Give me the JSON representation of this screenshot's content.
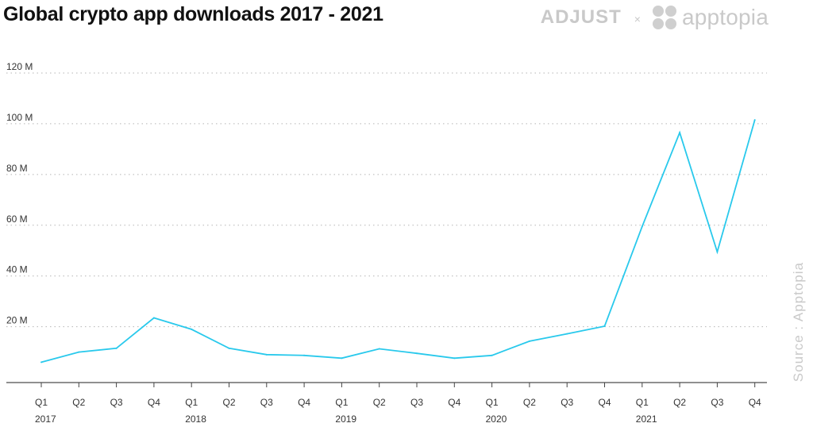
{
  "title": "Global crypto app downloads 2017 - 2021",
  "brand": {
    "adjust": "ADJUST",
    "separator": "×",
    "apptopia": "apptopia"
  },
  "source": "Source : Apptopia",
  "chart_data": {
    "type": "line",
    "title": "Global crypto app downloads 2017 - 2021",
    "xlabel": "",
    "ylabel": "",
    "categories": [
      "Q1",
      "Q2",
      "Q3",
      "Q4",
      "Q1",
      "Q2",
      "Q3",
      "Q4",
      "Q1",
      "Q2",
      "Q3",
      "Q4",
      "Q1",
      "Q2",
      "Q3",
      "Q4",
      "Q1",
      "Q2",
      "Q3",
      "Q4"
    ],
    "year_labels": [
      {
        "label": "2017",
        "index": 0
      },
      {
        "label": "2018",
        "index": 4
      },
      {
        "label": "2019",
        "index": 8
      },
      {
        "label": "2020",
        "index": 12
      },
      {
        "label": "2021",
        "index": 16
      }
    ],
    "series": [
      {
        "values": [
          6,
          10,
          11.5,
          23.5,
          19,
          11.5,
          9,
          8.7,
          7.6,
          11.3,
          9.5,
          7.6,
          8.7,
          14.3,
          17.2,
          20.2,
          59.5,
          96.5,
          49.5,
          101.5
        ],
        "color": "#29c9ec"
      }
    ],
    "ylim": [
      -2,
      120
    ],
    "yticks": [
      20,
      40,
      60,
      80,
      100,
      120
    ],
    "ytick_labels": [
      "20 M",
      "40 M",
      "60 M",
      "80 M",
      "100 M",
      "120 M"
    ],
    "grid": true,
    "legend": "none"
  }
}
